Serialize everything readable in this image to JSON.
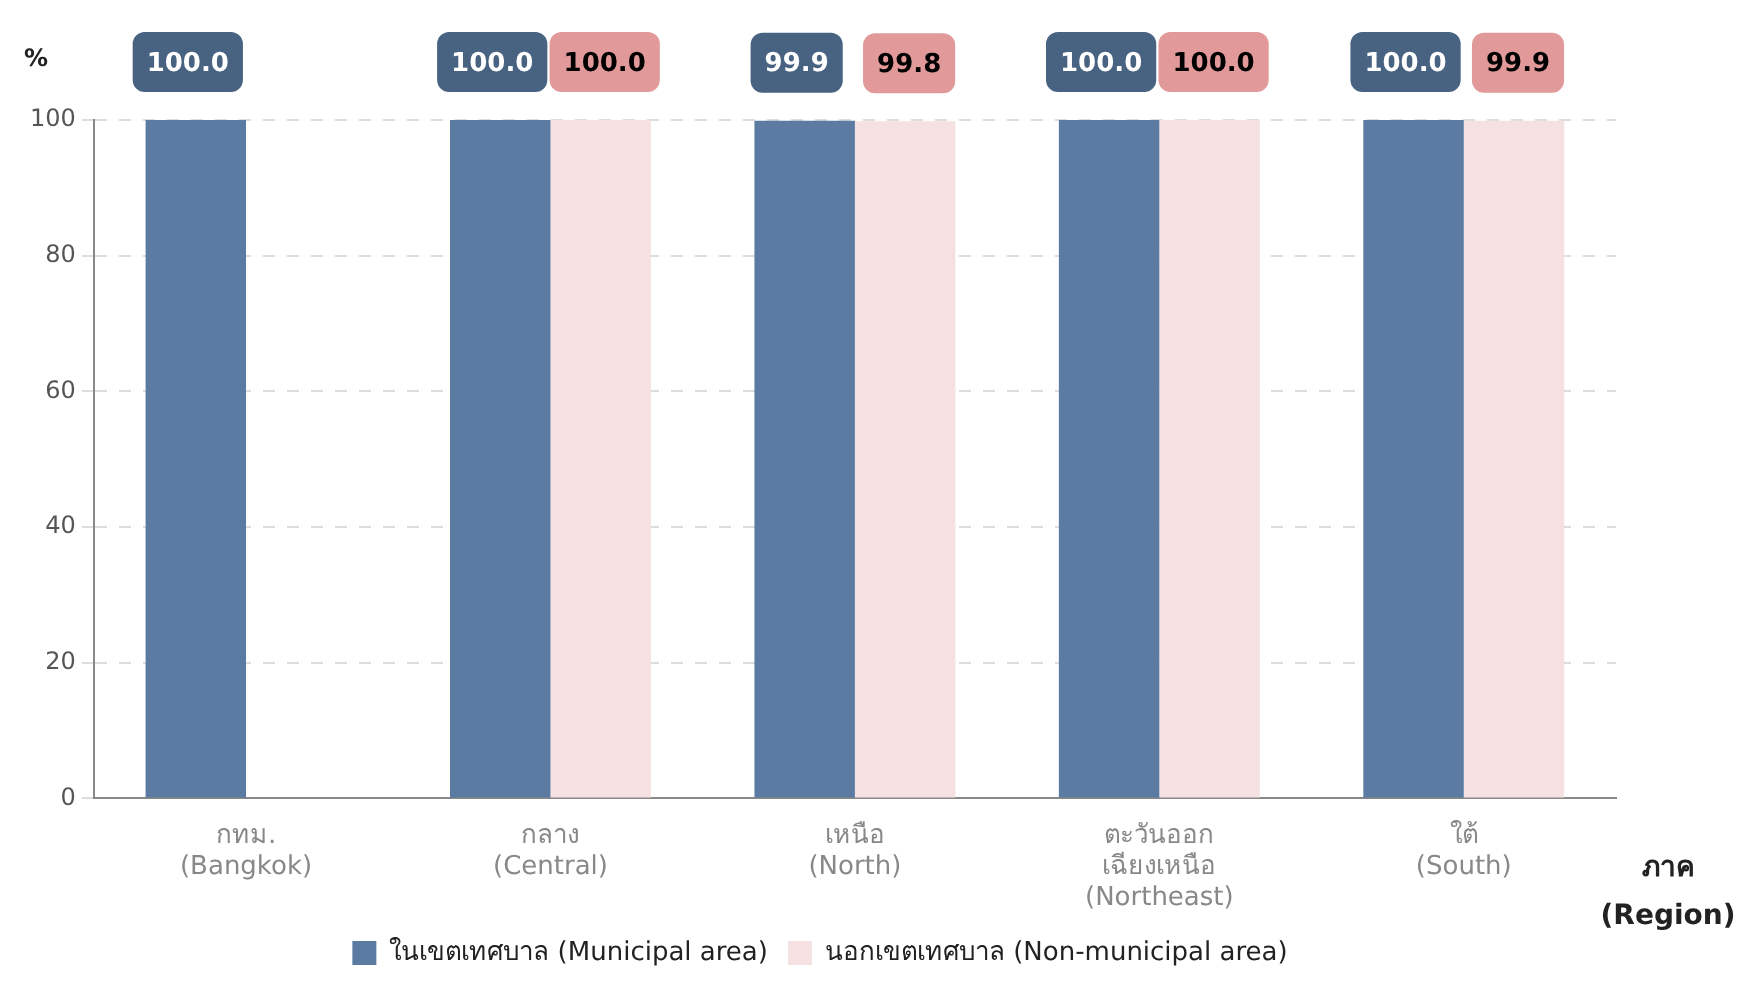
{
  "chart_data": {
    "type": "bar",
    "ylabel": "%",
    "xlabel": "ภาค\n(Region)",
    "categories": [
      "กทม.\n(Bangkok)",
      "กลาง\n(Central)",
      "เหนือ\n(North)",
      "ตะวันออก\nเฉียงเหนือ\n(Northeast)",
      "ใต้\n(South)"
    ],
    "series": [
      {
        "name": "ในเขตเทศบาล (Municipal area)",
        "color": "#5b7ba3",
        "values": [
          100,
          100,
          99.9,
          100,
          100
        ],
        "value_labels": [
          "100.0",
          "100.0",
          "99.9",
          "100.0",
          "100.0"
        ]
      },
      {
        "name": "นอกเขตเทศบาล (Non-municipal area)",
        "color": "#f5e1e1",
        "values": [
          null,
          100,
          99.8,
          100,
          99.9
        ],
        "value_labels": [
          null,
          "100.0",
          "99.8",
          "100.0",
          "99.9"
        ]
      }
    ],
    "ylim": [
      0,
      100
    ],
    "yticks": [
      0,
      20,
      40,
      60,
      80,
      100
    ],
    "grid": "y",
    "legend": "bottom"
  }
}
